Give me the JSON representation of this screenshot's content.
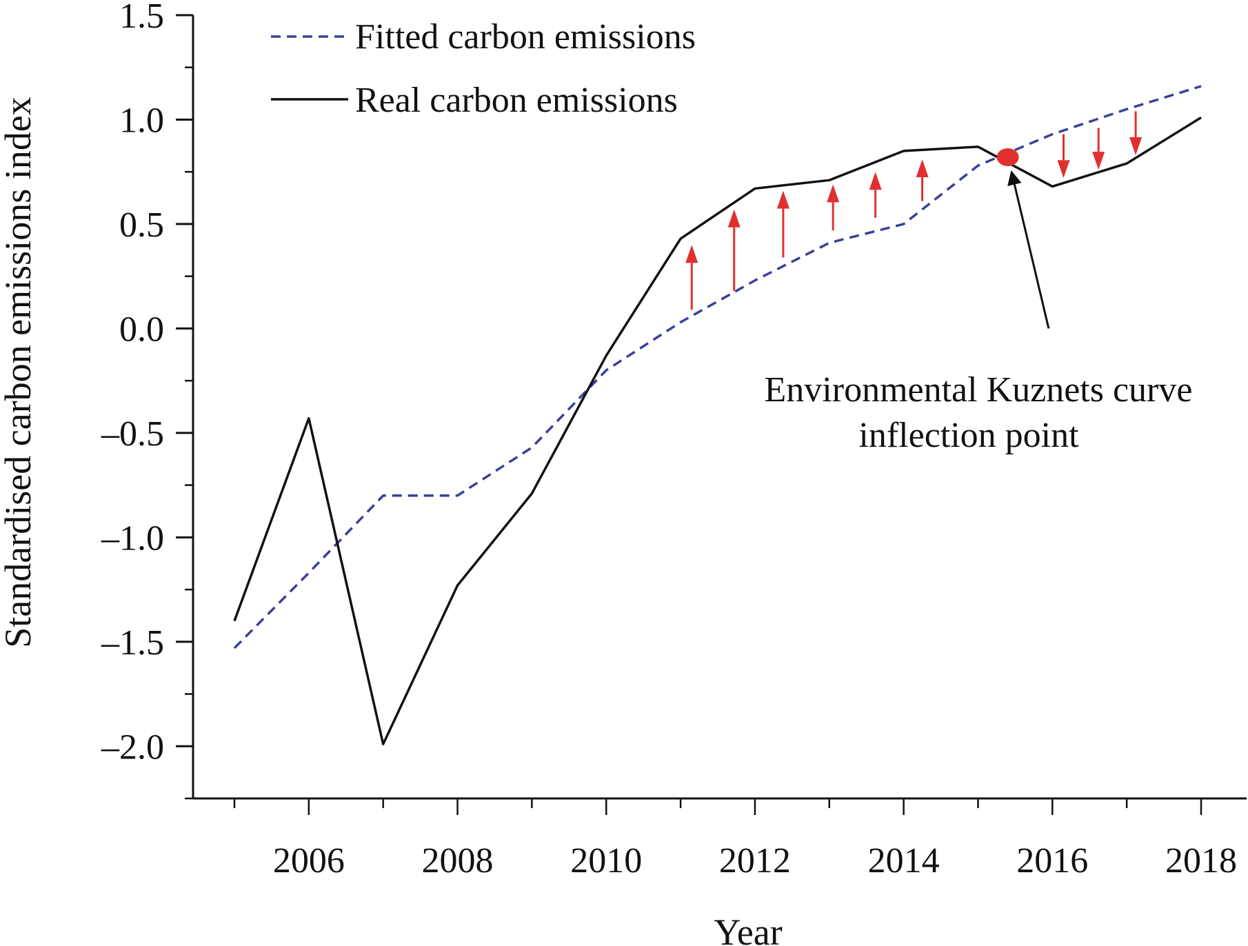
{
  "chart_data": {
    "type": "line",
    "xlabel": "Year",
    "ylabel": "Standardised carbon emissions index",
    "xlim": [
      2005,
      2018
    ],
    "ylim": [
      -2.25,
      1.5
    ],
    "x_ticks": [
      2006,
      2008,
      2010,
      2012,
      2014,
      2016,
      2018
    ],
    "y_ticks": [
      "1.5",
      "1.0",
      "0.5",
      "0.0",
      "–0.5",
      "–1.0",
      "–1.5",
      "–2.0"
    ],
    "y_tick_values": [
      1.5,
      1.0,
      0.5,
      0.0,
      -0.5,
      -1.0,
      -1.5,
      -2.0
    ],
    "grid": false,
    "legend_position": "top-left",
    "series": [
      {
        "name": "Fitted carbon emissions",
        "style": "dashed",
        "color": "#3a3f99",
        "x": [
          2005,
          2006,
          2007,
          2008,
          2009,
          2010,
          2011,
          2012,
          2013,
          2014,
          2015,
          2016,
          2017,
          2018
        ],
        "values": [
          -1.53,
          -1.17,
          -0.8,
          -0.8,
          -0.57,
          -0.2,
          0.03,
          0.23,
          0.41,
          0.5,
          0.78,
          0.93,
          1.05,
          1.16
        ]
      },
      {
        "name": "Real carbon emissions",
        "style": "solid",
        "color": "#111111",
        "x": [
          2005,
          2006,
          2007,
          2008,
          2009,
          2010,
          2011,
          2012,
          2013,
          2014,
          2015,
          2016,
          2017,
          2018
        ],
        "values": [
          -1.4,
          -0.43,
          -1.99,
          -1.23,
          -0.79,
          -0.13,
          0.43,
          0.67,
          0.71,
          0.85,
          0.87,
          0.68,
          0.79,
          1.01
        ]
      }
    ],
    "inflection_point": {
      "x": 2015.4,
      "y": 0.82,
      "color": "#e03030"
    },
    "annotation": {
      "line1": "Environmental Kuznets curve",
      "line2": "inflection point",
      "arrow_from": {
        "x": 2015.95,
        "y": 0.0
      },
      "arrow_to": {
        "x": 2015.45,
        "y": 0.75
      }
    },
    "gap_arrows": [
      {
        "x": 2011.15,
        "from": 0.09,
        "to": 0.4,
        "direction": "up"
      },
      {
        "x": 2011.72,
        "from": 0.18,
        "to": 0.57,
        "direction": "up"
      },
      {
        "x": 2012.38,
        "from": 0.34,
        "to": 0.66,
        "direction": "up"
      },
      {
        "x": 2013.05,
        "from": 0.47,
        "to": 0.69,
        "direction": "up"
      },
      {
        "x": 2013.62,
        "from": 0.53,
        "to": 0.75,
        "direction": "up"
      },
      {
        "x": 2014.25,
        "from": 0.61,
        "to": 0.81,
        "direction": "up"
      },
      {
        "x": 2016.15,
        "from": 0.93,
        "to": 0.72,
        "direction": "down"
      },
      {
        "x": 2016.62,
        "from": 0.96,
        "to": 0.76,
        "direction": "down"
      },
      {
        "x": 2017.12,
        "from": 1.04,
        "to": 0.83,
        "direction": "down"
      }
    ],
    "arrow_color": "#e03030"
  }
}
